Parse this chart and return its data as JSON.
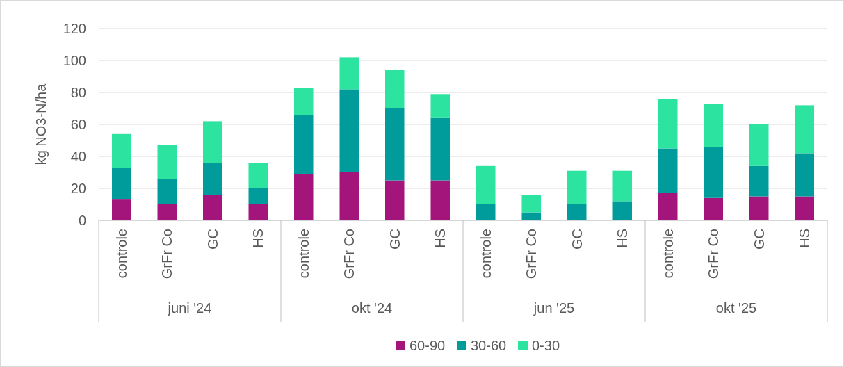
{
  "chart_data": {
    "type": "bar",
    "stacked": true,
    "ylabel": "kg NO3-N/ha",
    "categories": [
      "controle",
      "GrFr Co",
      "GC",
      "HS",
      "controle",
      "GrFr Co",
      "GC",
      "HS",
      "controle",
      "GrFr Co",
      "GC",
      "HS",
      "controle",
      "GrFr Co",
      "GC",
      "HS"
    ],
    "annotations": [
      "juni '24",
      "okt '24",
      "jun '25",
      "okt '25"
    ],
    "series": [
      {
        "name": "60-90",
        "color": "#a4157c",
        "values": [
          13,
          10,
          16,
          10,
          29,
          30,
          25,
          25,
          0,
          0,
          0,
          0,
          17,
          14,
          15,
          15
        ]
      },
      {
        "name": "30-60",
        "color": "#009b9b",
        "values": [
          20,
          16,
          20,
          10,
          37,
          52,
          45,
          39,
          10,
          5,
          10,
          12,
          28,
          32,
          19,
          27
        ]
      },
      {
        "name": "0-30",
        "color": "#2de3a0",
        "values": [
          21,
          21,
          26,
          16,
          17,
          20,
          24,
          15,
          24,
          11,
          21,
          19,
          31,
          27,
          26,
          30
        ]
      }
    ],
    "ylim": [
      0,
      120
    ],
    "yticks": [
      0,
      20,
      40,
      60,
      80,
      100,
      120
    ],
    "grid": "y",
    "legend": "bottom"
  }
}
